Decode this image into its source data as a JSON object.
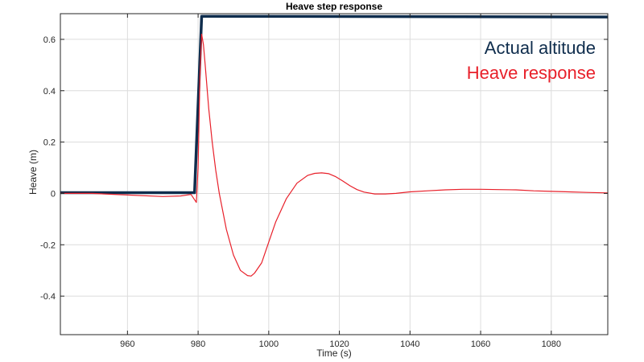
{
  "chart_data": {
    "type": "line",
    "title": "Heave step response",
    "xlabel": "Time (s)",
    "ylabel": "Heave (m)",
    "xlim": [
      941,
      1096
    ],
    "ylim": [
      -0.55,
      0.7
    ],
    "xticks": [
      960,
      980,
      1000,
      1020,
      1040,
      1060,
      1080
    ],
    "yticks": [
      -0.4,
      -0.2,
      0,
      0.2,
      0.4,
      0.6
    ],
    "xtick_labels": [
      "960",
      "980",
      "1000",
      "1020",
      "1040",
      "1060",
      "1080"
    ],
    "ytick_labels": [
      "-0.4",
      "-0.2",
      "0",
      "0.2",
      "0.4",
      "0.6"
    ],
    "grid": true,
    "legend_position": "top-right",
    "series": [
      {
        "name": "Actual altitude",
        "color": "#0f2d4d",
        "x": [
          941,
          979,
          981,
          1096
        ],
        "y": [
          0.003,
          0.003,
          0.69,
          0.687
        ]
      },
      {
        "name": "Heave response",
        "color": "#e8202a",
        "x": [
          941,
          950,
          960,
          970,
          975,
          978,
          979.5,
          980,
          980.5,
          981,
          981.5,
          982,
          983,
          984,
          985,
          986,
          988,
          990,
          992,
          994,
          995,
          996,
          998,
          1000,
          1002,
          1005,
          1008,
          1011,
          1013,
          1015,
          1017,
          1019,
          1021,
          1023,
          1025,
          1027,
          1030,
          1033,
          1036,
          1040,
          1045,
          1050,
          1055,
          1060,
          1065,
          1070,
          1075,
          1080,
          1085,
          1090,
          1096
        ],
        "y": [
          0,
          0,
          -0.006,
          -0.012,
          -0.01,
          -0.004,
          -0.035,
          0.1,
          0.45,
          0.62,
          0.58,
          0.5,
          0.33,
          0.2,
          0.09,
          0.0,
          -0.14,
          -0.24,
          -0.3,
          -0.32,
          -0.322,
          -0.31,
          -0.27,
          -0.19,
          -0.11,
          -0.02,
          0.04,
          0.07,
          0.078,
          0.08,
          0.077,
          0.065,
          0.048,
          0.03,
          0.015,
          0.005,
          -0.002,
          -0.002,
          0.0,
          0.006,
          0.01,
          0.014,
          0.016,
          0.016,
          0.015,
          0.014,
          0.01,
          0.008,
          0.006,
          0.004,
          0.002
        ]
      }
    ]
  }
}
